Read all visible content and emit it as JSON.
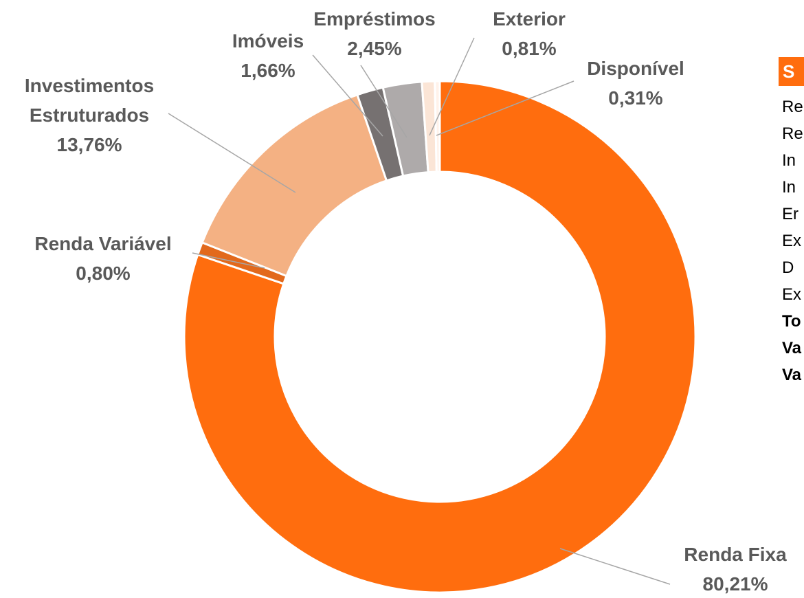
{
  "chart_data": {
    "type": "pie",
    "categories": [
      "Renda Fixa",
      "Renda Variável",
      "Investimentos Estruturados",
      "Imóveis",
      "Empréstimos",
      "Exterior",
      "Disponível"
    ],
    "values": [
      80.21,
      0.8,
      13.76,
      1.66,
      2.45,
      0.81,
      0.31
    ],
    "value_labels": [
      "80,21%",
      "0,80%",
      "13,76%",
      "1,66%",
      "2,45%",
      "0,81%",
      "0,31%"
    ],
    "colors": [
      "#ff6d0e",
      "#e2691c",
      "#f4b183",
      "#767171",
      "#aeaaaa",
      "#fbe5d6",
      "#fff2ea"
    ]
  },
  "side_table": {
    "header": "S",
    "rows": [
      "Re",
      "Re",
      "In",
      "In",
      "Er",
      "Ex",
      "D",
      "Ex"
    ],
    "bold_rows": [
      "To",
      "Va",
      "Va"
    ]
  }
}
